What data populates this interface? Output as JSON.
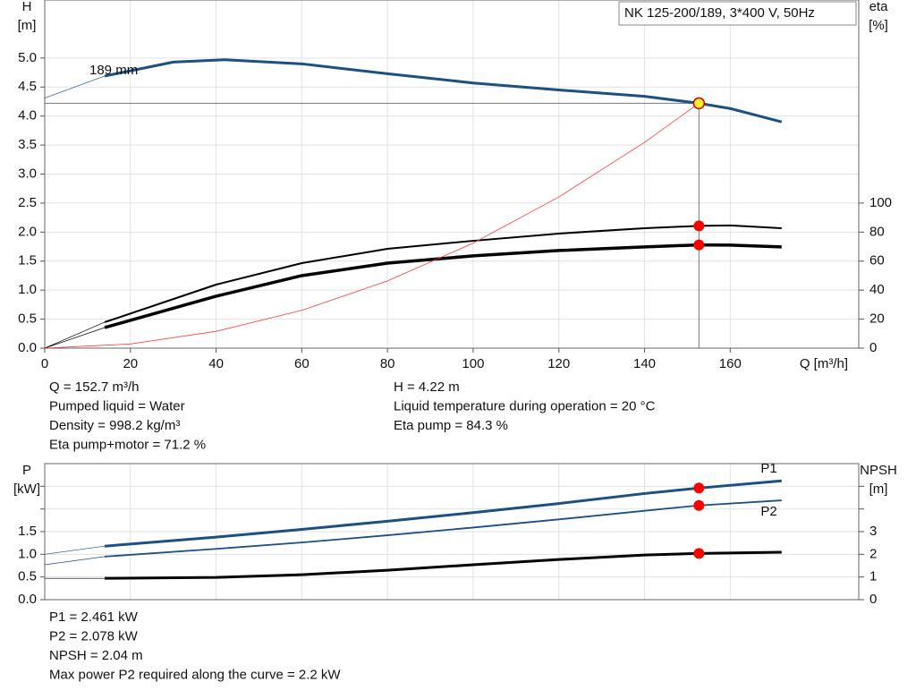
{
  "chart_data": [
    {
      "type": "line",
      "title": "NK 125-200/189, 3*400 V, 50Hz",
      "ylabel": "H",
      "yunit": "[m]",
      "y2label": "eta",
      "y2unit": "[%]",
      "xlabel": "Q [m³/h]",
      "xlim": [
        0,
        190
      ],
      "xticks": [
        0,
        20,
        40,
        60,
        80,
        100,
        120,
        140,
        160
      ],
      "ylim": [
        0,
        6
      ],
      "yticks": [
        {
          "value": 0,
          "label": "0.0"
        },
        {
          "value": 0.5,
          "label": "0.5"
        },
        {
          "value": 1,
          "label": "1.0"
        },
        {
          "value": 1.5,
          "label": "1.5"
        },
        {
          "value": 2,
          "label": "2.0"
        },
        {
          "value": 2.5,
          "label": "2.5"
        },
        {
          "value": 3,
          "label": "3.0"
        },
        {
          "value": 3.5,
          "label": "3.5"
        },
        {
          "value": 4,
          "label": "4.0"
        },
        {
          "value": 4.5,
          "label": "4.5"
        },
        {
          "value": 5,
          "label": "5.0"
        }
      ],
      "y2lim": [
        0,
        240
      ],
      "y2ticks": [
        0,
        20,
        40,
        60,
        80,
        100
      ],
      "grid": true,
      "series": [
        {
          "name": "189 mm",
          "color": "#1c4f82",
          "width": 3,
          "axis": "y",
          "x": [
            14,
            20,
            30,
            42,
            60,
            80,
            100,
            120,
            140,
            152.7,
            160,
            172
          ],
          "values": [
            4.69,
            4.78,
            4.93,
            4.97,
            4.9,
            4.73,
            4.57,
            4.45,
            4.34,
            4.22,
            4.13,
            3.9
          ]
        },
        {
          "color": "#1c4f82",
          "width": 0.7,
          "axis": "y",
          "x": [
            0,
            14
          ],
          "values": [
            4.31,
            4.69
          ]
        },
        {
          "color": "#000000",
          "width": 2,
          "axis": "y2",
          "x": [
            14,
            40,
            60,
            80,
            100,
            120,
            140,
            152.7,
            160,
            172
          ],
          "values": [
            17.9,
            43.8,
            58.6,
            68.5,
            74,
            79,
            82.7,
            84.3,
            84.6,
            82.7
          ]
        },
        {
          "color": "#000000",
          "width": 0.7,
          "axis": "y2",
          "x": [
            0,
            14
          ],
          "values": [
            0,
            17.9
          ]
        },
        {
          "color": "#000000",
          "width": 3.5,
          "axis": "y2",
          "x": [
            14,
            40,
            60,
            80,
            100,
            120,
            140,
            152.7,
            160,
            172
          ],
          "values": [
            14.2,
            35.8,
            50,
            58.6,
            63.6,
            67.3,
            69.8,
            71.2,
            71,
            69.8
          ]
        },
        {
          "color": "#000000",
          "width": 0.7,
          "axis": "y2",
          "x": [
            0,
            14
          ],
          "values": [
            0,
            14.2
          ]
        },
        {
          "color": "#ff3b3b",
          "width": 0.8,
          "axis": "y",
          "x": [
            0,
            20,
            40,
            60,
            80,
            100,
            120,
            140,
            152.7
          ],
          "values": [
            0,
            0.072,
            0.29,
            0.652,
            1.158,
            1.81,
            2.606,
            3.547,
            4.22
          ]
        }
      ],
      "points": [
        {
          "x": 152.7,
          "y": 4.22,
          "color": "#ffee33",
          "axis": "y"
        },
        {
          "x": 152.7,
          "y": 84.3,
          "color": "#ff0000",
          "axis": "y2"
        },
        {
          "x": 152.7,
          "y": 71.2,
          "color": "#ff0000",
          "axis": "y2"
        }
      ],
      "info": [
        [
          "Q = 152.7 m³/h",
          "Pumped liquid = Water",
          "Density = 998.2 kg/m³",
          "Eta pump+motor = 71.2 %"
        ],
        [
          "H = 4.22 m",
          "Liquid temperature during operation = 20 °C",
          "Eta pump = 84.3 %"
        ]
      ]
    },
    {
      "type": "line",
      "ylabel": "P",
      "yunit": "[kW]",
      "y2label": "NPSH",
      "y2unit": "[m]",
      "xlim": [
        0,
        190
      ],
      "xgrid": [
        0,
        20,
        40,
        60,
        80,
        100,
        120,
        140,
        160
      ],
      "ylim": [
        0,
        3
      ],
      "yticks": [
        {
          "value": 0,
          "label": "0.0"
        },
        {
          "value": 0.5,
          "label": "0.5"
        },
        {
          "value": 1,
          "label": "1.0"
        },
        {
          "value": 1.5,
          "label": "1.5"
        }
      ],
      "yminor": [
        2,
        2.5
      ],
      "y2lim": [
        0,
        6
      ],
      "y2ticks": [
        0,
        1,
        2,
        3
      ],
      "y2minor": [
        4,
        5
      ],
      "grid": true,
      "series": [
        {
          "name": "P1",
          "color": "#1c4f82",
          "width": 3,
          "axis": "y",
          "x": [
            14,
            40,
            60,
            80,
            100,
            120,
            140,
            152.7,
            172
          ],
          "values": [
            1.18,
            1.38,
            1.55,
            1.73,
            1.92,
            2.12,
            2.34,
            2.461,
            2.62
          ]
        },
        {
          "color": "#1c4f82",
          "width": 0.7,
          "axis": "y",
          "x": [
            0,
            14
          ],
          "values": [
            1.0,
            1.18
          ]
        },
        {
          "name": "P2",
          "color": "#1c4f82",
          "width": 1.8,
          "axis": "y",
          "x": [
            14,
            40,
            60,
            80,
            100,
            120,
            140,
            152.7,
            172
          ],
          "values": [
            0.95,
            1.12,
            1.26,
            1.42,
            1.59,
            1.77,
            1.96,
            2.078,
            2.19
          ]
        },
        {
          "color": "#1c4f82",
          "width": 0.7,
          "axis": "y",
          "x": [
            0,
            14
          ],
          "values": [
            0.77,
            0.95
          ]
        },
        {
          "color": "#000000",
          "width": 3,
          "axis": "y2",
          "x": [
            14,
            40,
            60,
            80,
            100,
            120,
            140,
            152.7,
            172
          ],
          "values": [
            0.94,
            0.98,
            1.1,
            1.3,
            1.54,
            1.77,
            1.97,
            2.04,
            2.09
          ]
        },
        {
          "color": "#000000",
          "width": 0.7,
          "axis": "y2",
          "x": [
            0,
            14
          ],
          "values": [
            0.94,
            0.94
          ]
        }
      ],
      "points": [
        {
          "x": 152.7,
          "y": 2.461,
          "color": "#ff0000",
          "axis": "y"
        },
        {
          "x": 152.7,
          "y": 2.078,
          "color": "#ff0000",
          "axis": "y"
        },
        {
          "x": 152.7,
          "y": 2.04,
          "color": "#ff0000",
          "axis": "y2"
        }
      ],
      "info": [
        [
          "P1 = 2.461 kW",
          "P2 = 2.078 kW",
          "NPSH = 2.04 m",
          "Max power P2 required along the curve = 2.2 kW"
        ]
      ]
    }
  ]
}
